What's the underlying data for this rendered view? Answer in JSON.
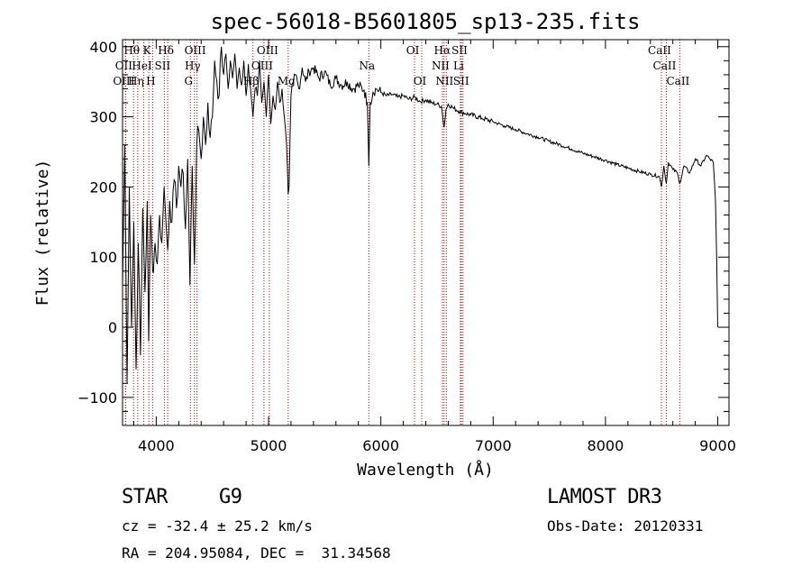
{
  "chart_data": {
    "type": "line",
    "title": "spec-56018-B5601805_sp13-235.fits",
    "xlabel": "Wavelength (Å)",
    "ylabel": "Flux (relative)",
    "xlim": [
      3700,
      9100
    ],
    "ylim": [
      -140,
      410
    ],
    "x_ticks": [
      4000,
      5000,
      6000,
      7000,
      8000,
      9000
    ],
    "y_ticks": [
      -100,
      0,
      100,
      200,
      300,
      400
    ],
    "series": [
      {
        "name": "flux",
        "x": [
          3700,
          3720,
          3740,
          3760,
          3780,
          3800,
          3820,
          3840,
          3860,
          3880,
          3900,
          3920,
          3933,
          3950,
          3968,
          3990,
          4010,
          4030,
          4050,
          4070,
          4090,
          4102,
          4120,
          4140,
          4160,
          4180,
          4200,
          4220,
          4240,
          4260,
          4280,
          4300,
          4320,
          4340,
          4360,
          4380,
          4400,
          4420,
          4440,
          4460,
          4480,
          4500,
          4520,
          4540,
          4560,
          4580,
          4600,
          4620,
          4640,
          4660,
          4680,
          4700,
          4720,
          4740,
          4760,
          4780,
          4800,
          4820,
          4840,
          4861,
          4880,
          4900,
          4920,
          4940,
          4960,
          4980,
          5000,
          5020,
          5040,
          5060,
          5080,
          5100,
          5120,
          5140,
          5160,
          5175,
          5183,
          5200,
          5220,
          5240,
          5270,
          5300,
          5330,
          5360,
          5400,
          5450,
          5500,
          5550,
          5600,
          5650,
          5700,
          5750,
          5800,
          5850,
          5880,
          5893,
          5905,
          5930,
          5960,
          6000,
          6050,
          6100,
          6150,
          6200,
          6250,
          6300,
          6350,
          6400,
          6450,
          6500,
          6540,
          6563,
          6580,
          6600,
          6650,
          6700,
          6750,
          6800,
          6900,
          7000,
          7100,
          7200,
          7300,
          7400,
          7500,
          7600,
          7700,
          7800,
          7900,
          8000,
          8100,
          8200,
          8300,
          8400,
          8480,
          8498,
          8520,
          8542,
          8560,
          8600,
          8640,
          8662,
          8700,
          8750,
          8800,
          8850,
          8900,
          8930,
          8960,
          8980,
          8990,
          9000
        ],
        "y": [
          60,
          260,
          -80,
          200,
          0,
          150,
          -60,
          120,
          -40,
          170,
          50,
          180,
          -20,
          160,
          80,
          120,
          90,
          160,
          120,
          200,
          140,
          110,
          180,
          150,
          210,
          170,
          230,
          200,
          220,
          140,
          240,
          60,
          230,
          90,
          260,
          280,
          240,
          300,
          260,
          320,
          270,
          300,
          380,
          350,
          330,
          400,
          360,
          390,
          340,
          380,
          355,
          390,
          340,
          370,
          345,
          380,
          330,
          375,
          340,
          300,
          340,
          330,
          380,
          320,
          350,
          300,
          360,
          290,
          330,
          310,
          350,
          320,
          340,
          300,
          260,
          190,
          200,
          330,
          350,
          360,
          340,
          370,
          350,
          365,
          370,
          355,
          365,
          345,
          355,
          345,
          350,
          340,
          345,
          338,
          320,
          230,
          320,
          335,
          340,
          335,
          330,
          332,
          328,
          330,
          325,
          328,
          322,
          324,
          320,
          318,
          315,
          285,
          310,
          318,
          312,
          308,
          305,
          303,
          298,
          293,
          287,
          282,
          276,
          271,
          265,
          260,
          254,
          248,
          243,
          238,
          232,
          227,
          222,
          218,
          215,
          200,
          230,
          205,
          235,
          225,
          220,
          205,
          230,
          220,
          240,
          230,
          245,
          240,
          235,
          180,
          100,
          0
        ]
      }
    ],
    "spectral_lines": [
      {
        "label": "Hθ",
        "wl": 3798,
        "row": 1
      },
      {
        "label": "K",
        "wl": 3934,
        "row": 1
      },
      {
        "label": "Hδ",
        "wl": 4102,
        "row": 1
      },
      {
        "label": "OIII",
        "wl": 4363,
        "row": 1
      },
      {
        "label": "OIII",
        "wl": 5007,
        "row": 1
      },
      {
        "label": "OI",
        "wl": 6300,
        "row": 1
      },
      {
        "label": "Hα",
        "wl": 6563,
        "row": 1
      },
      {
        "label": "SII",
        "wl": 6717,
        "row": 1
      },
      {
        "label": "CaII",
        "wl": 8498,
        "row": 1
      },
      {
        "label": "OII",
        "wl": 3727,
        "row": 2
      },
      {
        "label": "HeI",
        "wl": 3889,
        "row": 2
      },
      {
        "label": "SII",
        "wl": 4072,
        "row": 2
      },
      {
        "label": "Hγ",
        "wl": 4340,
        "row": 2
      },
      {
        "label": "OIII",
        "wl": 4959,
        "row": 2
      },
      {
        "label": "Na",
        "wl": 5893,
        "row": 2
      },
      {
        "label": "NII",
        "wl": 6548,
        "row": 2
      },
      {
        "label": "Li",
        "wl": 6708,
        "row": 2
      },
      {
        "label": "CaII",
        "wl": 8542,
        "row": 2
      },
      {
        "label": "OIII",
        "wl": 3727,
        "row": 3
      },
      {
        "label": "Hη",
        "wl": 3835,
        "row": 3
      },
      {
        "label": "H",
        "wl": 3968,
        "row": 3
      },
      {
        "label": "G",
        "wl": 4304,
        "row": 3
      },
      {
        "label": "Hβ",
        "wl": 4861,
        "row": 3
      },
      {
        "label": "Mg",
        "wl": 5175,
        "row": 3
      },
      {
        "label": "OI",
        "wl": 6364,
        "row": 3
      },
      {
        "label": "NII",
        "wl": 6583,
        "row": 3
      },
      {
        "label": "SII",
        "wl": 6731,
        "row": 3
      },
      {
        "label": "CaII",
        "wl": 8662,
        "row": 3
      }
    ]
  },
  "info": {
    "class": "STAR",
    "subclass": "G9",
    "survey": "LAMOST DR3",
    "cz": "cz = -32.4 ± 25.2 km/s",
    "obs_date": "Obs-Date: 20120331",
    "radec": "RA = 204.95084, DEC =  31.34568"
  },
  "colors": {
    "line": "#000000",
    "marker": "#cc0000"
  }
}
